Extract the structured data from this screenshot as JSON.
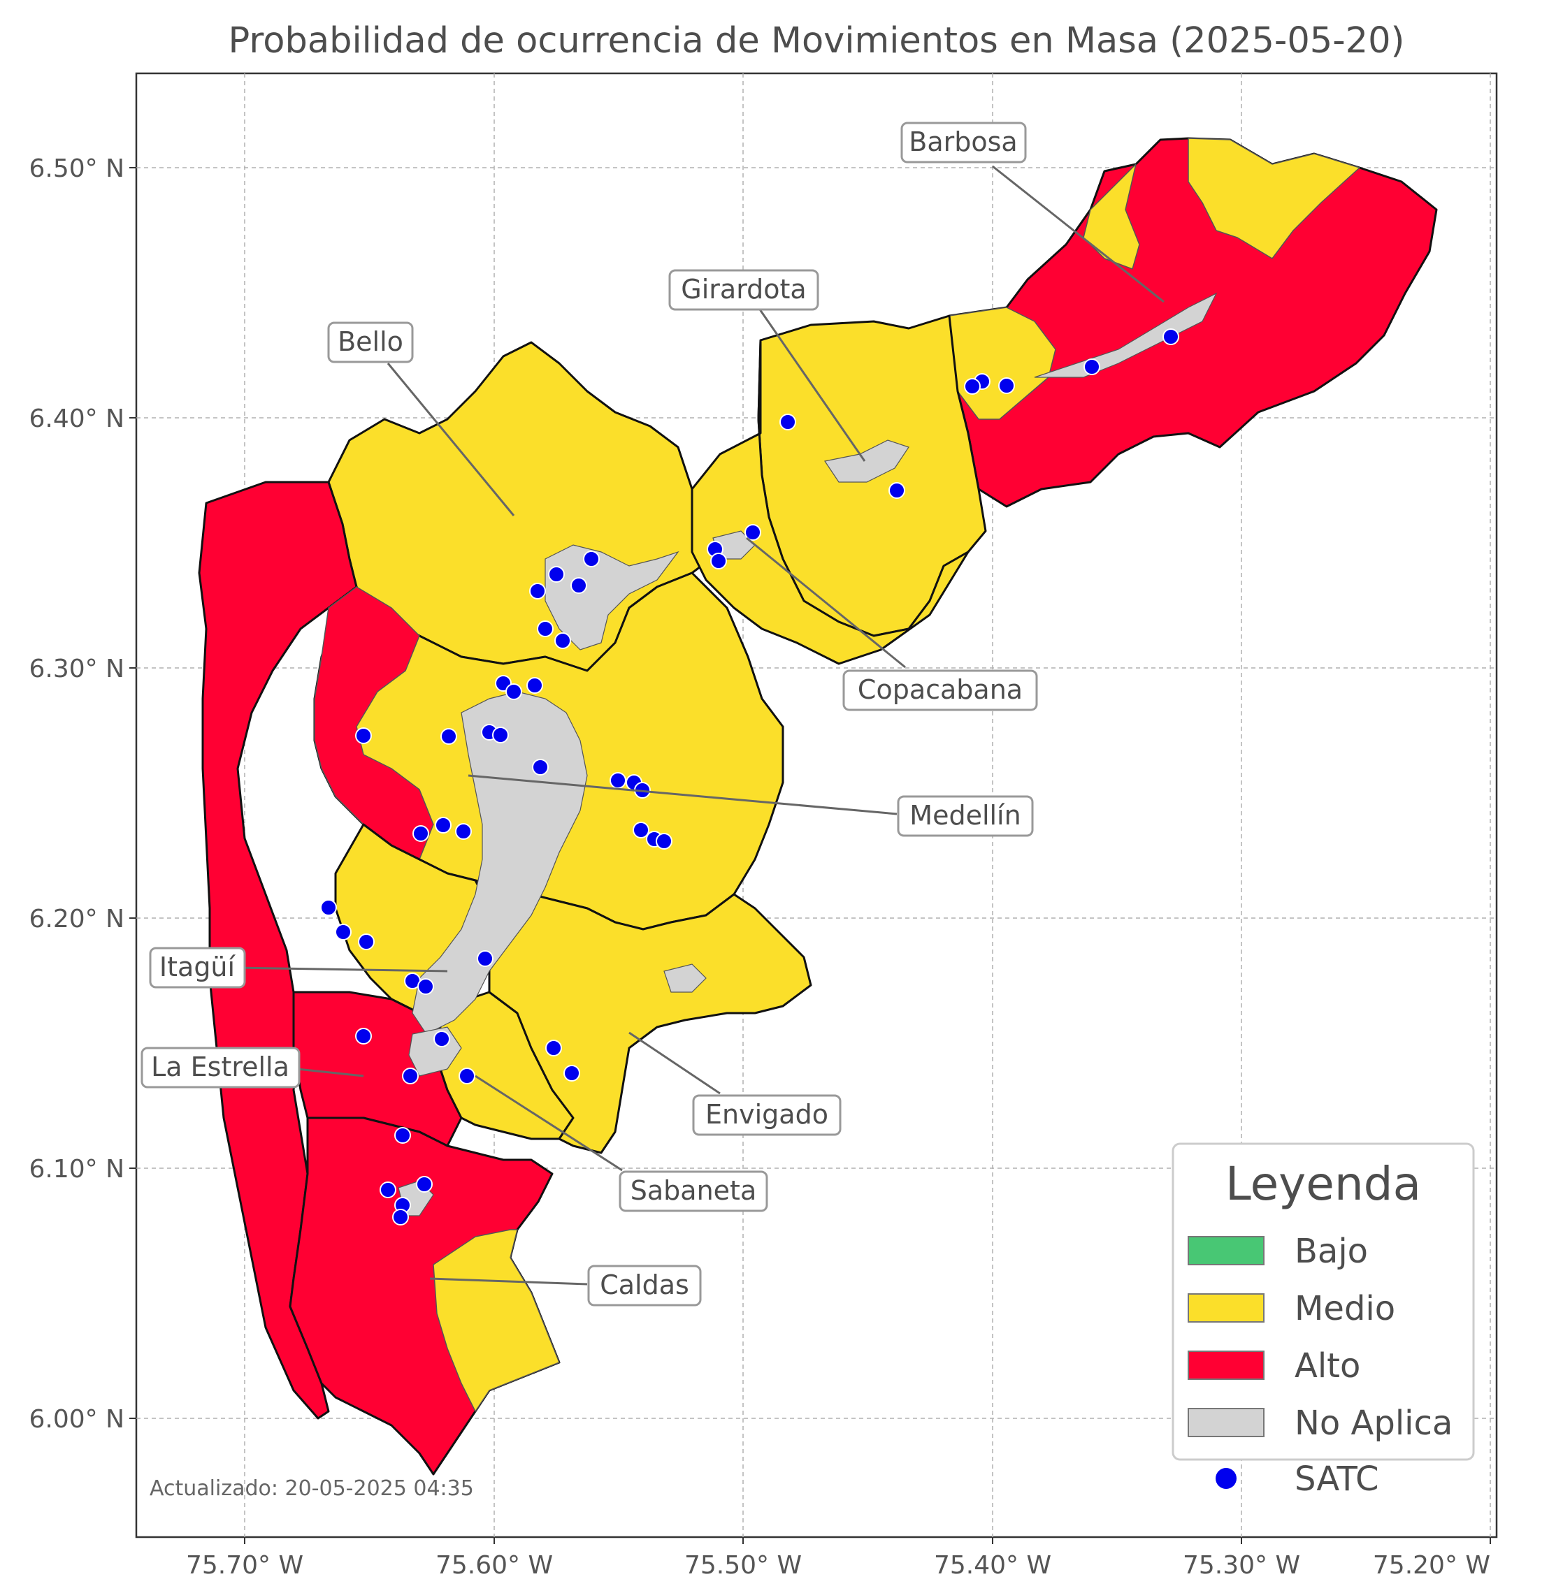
{
  "title": "Probabilidad de ocurrencia de Movimientos en Masa (2025-05-20)",
  "updated_text": "Actualizado: 20-05-2025 04:35",
  "axes": {
    "x_ticks": [
      "75.70° W",
      "75.60° W",
      "75.50° W",
      "75.40° W",
      "75.30° W",
      "75.20° W"
    ],
    "y_ticks": [
      "6.50° N",
      "6.40° N",
      "6.30° N",
      "6.20° N",
      "6.10° N",
      "6.00° N"
    ]
  },
  "municipalities": [
    {
      "name": "Barbosa",
      "level": "Alto"
    },
    {
      "name": "Girardota",
      "level": "Medio"
    },
    {
      "name": "Bello",
      "level": "Medio"
    },
    {
      "name": "Copacabana",
      "level": "Medio"
    },
    {
      "name": "Medellín",
      "level": "Medio"
    },
    {
      "name": "Itagüí",
      "level": "Medio"
    },
    {
      "name": "La Estrella",
      "level": "Alto"
    },
    {
      "name": "Envigado",
      "level": "Medio"
    },
    {
      "name": "Sabaneta",
      "level": "Medio"
    },
    {
      "name": "Caldas",
      "level": "Alto"
    }
  ],
  "legend": {
    "title": "Leyenda",
    "items": [
      {
        "label": "Bajo",
        "color": "#48c774"
      },
      {
        "label": "Medio",
        "color": "#fbdf2a"
      },
      {
        "label": "Alto",
        "color": "#ff0033"
      },
      {
        "label": "No Aplica",
        "color": "#d3d3d3"
      },
      {
        "label": "SATC",
        "color": "#0000ee"
      }
    ]
  }
}
